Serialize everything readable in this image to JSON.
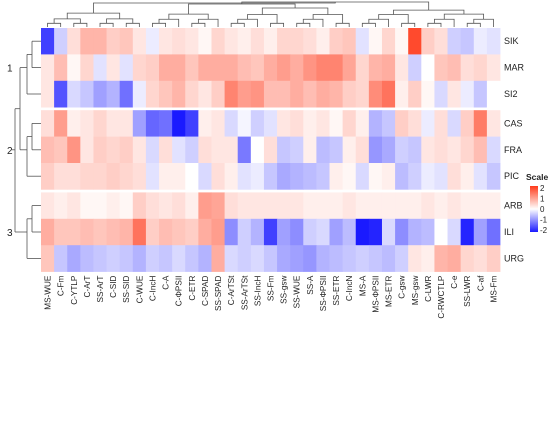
{
  "chart_data": {
    "type": "heatmap",
    "rows": [
      "SIK",
      "MAR",
      "SI2",
      "CAS",
      "FRA",
      "PIC",
      "ARB",
      "ILI",
      "URG"
    ],
    "row_groups": [
      {
        "label": "1",
        "rows": [
          "SIK",
          "MAR",
          "SI2"
        ]
      },
      {
        "label": "2",
        "rows": [
          "CAS",
          "FRA",
          "PIC"
        ]
      },
      {
        "label": "3",
        "rows": [
          "ARB",
          "ILI",
          "URG"
        ]
      }
    ],
    "columns": [
      "MS-WUE",
      "C-Fm",
      "C-YTLP",
      "C-ArT",
      "SS-ArT",
      "C-SID",
      "SS-SID",
      "C-WUE",
      "C-IncH",
      "C-A",
      "C-ΦPSII",
      "C-ETR",
      "C-SPAD",
      "SS-SPAD",
      "C-ArTSt",
      "SS-ArTSt",
      "SS-IncH",
      "SS-Fm",
      "SS-gsw",
      "SS-WUE",
      "SS-A",
      "SS-ΦPSII",
      "SS-ETR",
      "C-IncN",
      "MS-A",
      "MS-ΦPSII",
      "MS-ETR",
      "C-gsw",
      "MS-gsw",
      "C-LWR",
      "C-RWCTLP",
      "C-e",
      "SS-LWR",
      "C-af",
      "MS-Fm"
    ],
    "values": [
      [
        -2.0,
        -0.5,
        0.4,
        0.9,
        0.9,
        0.6,
        0.7,
        0.3,
        -0.2,
        0.3,
        0.4,
        0.3,
        0.1,
        0.5,
        0.3,
        0.2,
        0.4,
        0.2,
        0.5,
        0.5,
        0.4,
        0.2,
        0.6,
        0.7,
        -0.3,
        0.1,
        0.5,
        0.1,
        2.2,
        0.6,
        0.4,
        -0.5,
        -0.6,
        -0.2,
        -0.3
      ],
      [
        0.3,
        0.8,
        0.1,
        0.5,
        -0.3,
        0.3,
        -0.3,
        0.5,
        0.6,
        1.0,
        1.0,
        0.7,
        1.0,
        1.0,
        1.0,
        0.8,
        0.7,
        1.0,
        1.2,
        1.0,
        1.3,
        1.5,
        1.5,
        1.1,
        0.5,
        0.9,
        1.0,
        0.3,
        -0.5,
        0.0,
        0.7,
        0.8,
        0.4,
        0.5,
        0.3
      ],
      [
        0.3,
        -1.8,
        -0.4,
        -0.6,
        -1.0,
        -0.8,
        -1.5,
        -0.2,
        0.5,
        0.7,
        0.9,
        0.5,
        0.3,
        0.6,
        1.5,
        1.2,
        1.3,
        0.8,
        0.8,
        1.0,
        0.8,
        1.0,
        0.9,
        0.6,
        0.5,
        1.4,
        1.7,
        0.2,
        0.6,
        0.1,
        -0.4,
        0.3,
        -0.2,
        -0.6,
        0.0
      ],
      [
        0.4,
        1.2,
        0.2,
        0.3,
        0.5,
        0.3,
        0.3,
        -1.0,
        -1.6,
        -1.5,
        -2.4,
        -2.0,
        0.2,
        0.3,
        -0.4,
        -0.1,
        -0.5,
        -0.3,
        0.3,
        0.4,
        0.2,
        0.3,
        0.1,
        0.5,
        0.2,
        -0.8,
        -0.6,
        0.6,
        0.4,
        -0.2,
        0.4,
        -0.4,
        0.6,
        1.6,
        0.3
      ],
      [
        0.8,
        0.7,
        1.3,
        0.3,
        0.6,
        0.5,
        0.6,
        0.3,
        -0.4,
        0.4,
        -0.3,
        -0.5,
        0.4,
        0.3,
        0.3,
        -1.4,
        0.0,
        0.4,
        -0.6,
        -0.5,
        0.2,
        -0.7,
        -0.6,
        0.2,
        0.4,
        -1.1,
        -0.9,
        -0.5,
        -0.6,
        0.3,
        0.4,
        0.3,
        0.5,
        0.8,
        -0.4
      ],
      [
        0.6,
        0.4,
        0.4,
        0.5,
        0.5,
        0.6,
        0.5,
        0.4,
        -0.3,
        0.2,
        0.2,
        0.0,
        -0.4,
        0.4,
        0.2,
        -0.3,
        -0.2,
        -0.6,
        -0.9,
        -0.8,
        -0.7,
        -0.6,
        0.2,
        0.1,
        -0.4,
        0.1,
        0.2,
        -0.7,
        -0.5,
        -0.2,
        -0.3,
        0.4,
        0.2,
        -0.3,
        -0.6
      ],
      [
        0.3,
        0.2,
        0.3,
        0.1,
        0.1,
        0.2,
        0.1,
        0.6,
        0.4,
        0.3,
        0.4,
        0.2,
        1.2,
        1.1,
        0.4,
        0.3,
        0.3,
        0.3,
        0.3,
        0.3,
        0.2,
        0.2,
        0.2,
        0.3,
        0.2,
        0.2,
        0.2,
        0.2,
        0.2,
        0.3,
        0.2,
        0.3,
        0.2,
        0.2,
        0.2
      ],
      [
        1.0,
        0.7,
        0.7,
        0.8,
        0.7,
        0.8,
        0.9,
        1.7,
        0.6,
        0.8,
        0.7,
        0.6,
        1.0,
        1.2,
        -1.2,
        -0.5,
        -0.8,
        -2.0,
        -1.0,
        -1.2,
        -0.5,
        -0.4,
        -1.0,
        -0.7,
        -2.5,
        -2.3,
        -0.4,
        -1.2,
        -0.8,
        -0.7,
        0.0,
        -0.4,
        -2.3,
        -1.0,
        -1.5
      ],
      [
        0.7,
        -0.6,
        -0.9,
        -0.7,
        -0.6,
        -0.5,
        -0.6,
        -0.8,
        -0.5,
        -0.6,
        -0.4,
        -0.6,
        -0.8,
        1.0,
        -0.4,
        -0.5,
        -0.4,
        -0.6,
        -0.9,
        -1.0,
        -1.1,
        -0.8,
        -0.7,
        -0.6,
        -0.5,
        -0.6,
        -0.7,
        -0.5,
        0.3,
        0.2,
        0.9,
        1.0,
        0.5,
        0.4,
        0.6
      ]
    ],
    "legend": {
      "title": "Scale",
      "ticks": [
        2,
        1,
        0,
        -1,
        -2
      ],
      "position": "right"
    },
    "color_low": "#1a1aff",
    "color_mid": "#ffffff",
    "color_high": "#ff3a1a"
  }
}
